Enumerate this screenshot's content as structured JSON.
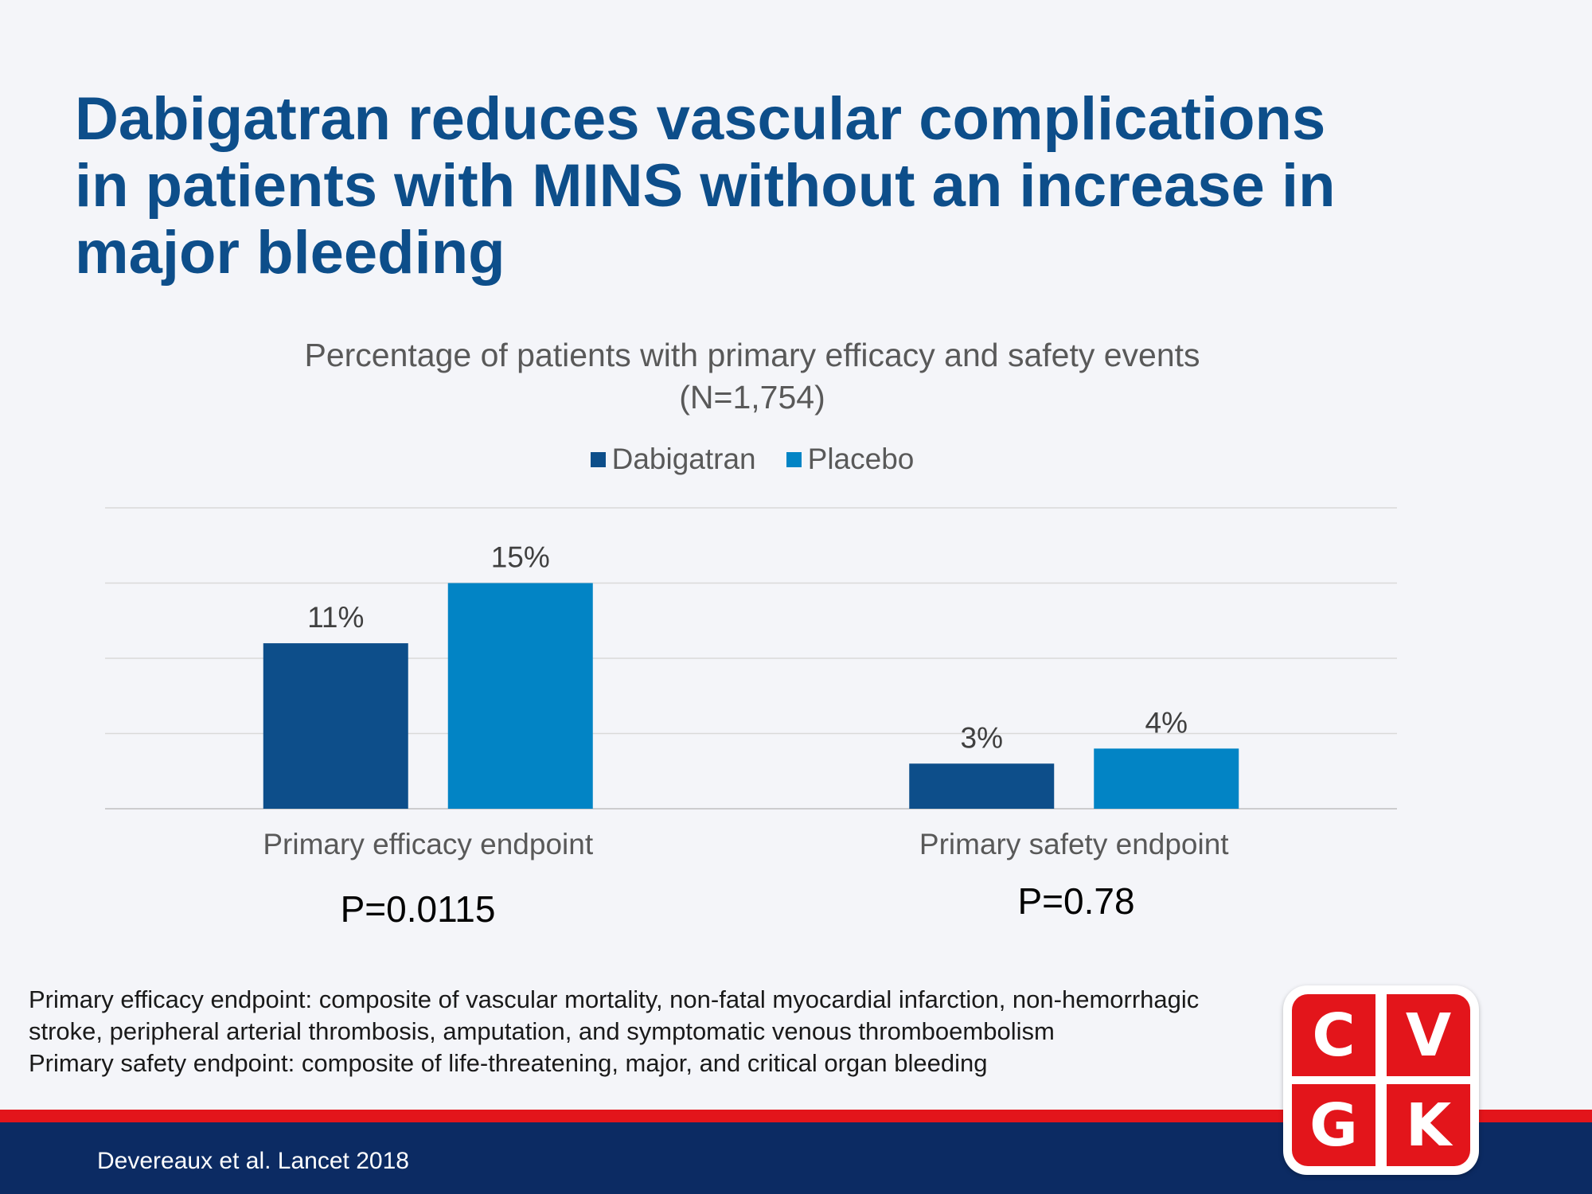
{
  "title_lines": [
    "Dabigatran reduces vascular complications",
    "in patients with MINS without an increase in",
    "major bleeding"
  ],
  "chart_data": {
    "type": "bar",
    "title_lines": [
      "Percentage  of patients  with  primary  efficacy and  safety events",
      "(N=1,754)"
    ],
    "categories": [
      "Primary efficacy endpoint",
      "Primary safety endpoint"
    ],
    "series": [
      {
        "name": "Dabigatran",
        "values": [
          11,
          3
        ],
        "labels": [
          "11%",
          "3%"
        ],
        "color": "#0d4e8a"
      },
      {
        "name": "Placebo",
        "values": [
          15,
          4
        ],
        "labels": [
          "15%",
          "4%"
        ],
        "color": "#0284c5"
      }
    ],
    "ylim": [
      0,
      20
    ],
    "grid": true,
    "legend_position": "top-center",
    "yaxis_labels_shown": false
  },
  "pvalues": [
    "P=0.0115",
    "P=0.78"
  ],
  "footnotes": [
    "Primary efficacy endpoint: composite of vascular  mortality,  non-fatal  myocardial  infarction,  non-hemorrhagic",
    "stroke, peripheral arterial thrombosis,  amputation,  and symptomatic  venous  thromboembolism",
    "Primary safety  endpoint:  composite of life-threatening,  major,  and critical organ bleeding"
  ],
  "citation": "Devereaux et al. Lancet 2018",
  "logo_letters": [
    "C",
    "V",
    "G",
    "K"
  ],
  "colors": {
    "title": "#0d4e8a",
    "accent_red": "#e3151b",
    "footer_navy": "#0c2b63"
  }
}
